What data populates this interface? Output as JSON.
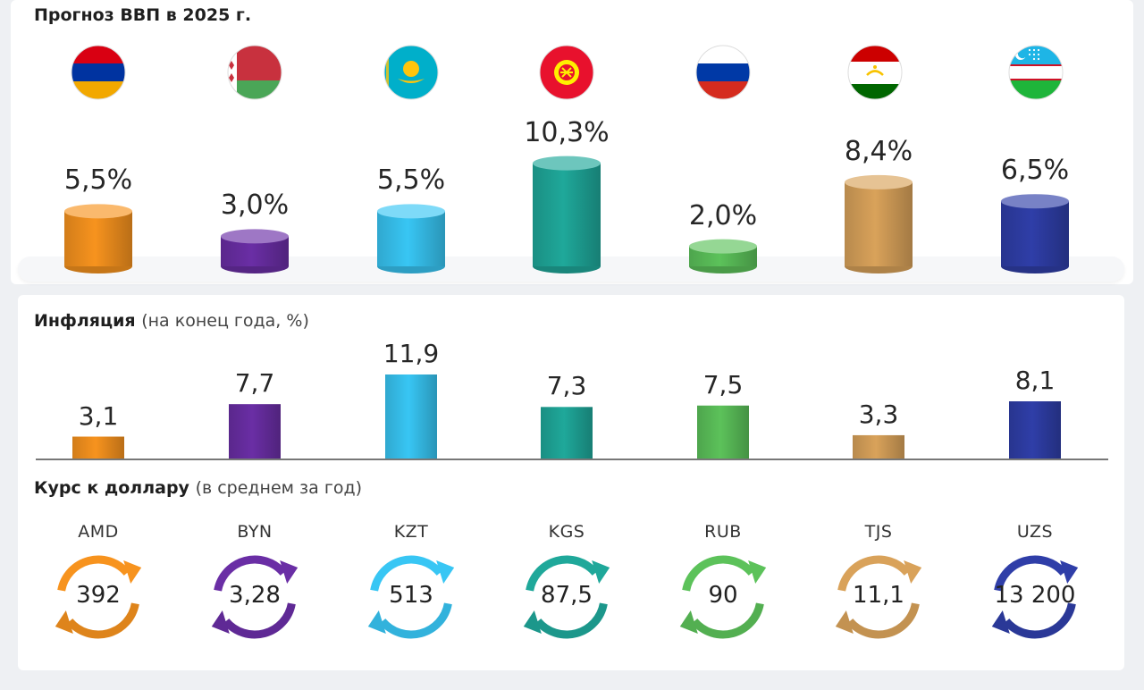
{
  "title": "Прогноз ВВП в 2025 г.",
  "inflation_title": "Инфляция",
  "inflation_subtitle": "(на конец года, %)",
  "rate_title": "Курс к доллару",
  "rate_subtitle": "(в среднем за год)",
  "countries": [
    {
      "flag": "armenia-flag-icon",
      "color": "#f7931e"
    },
    {
      "flag": "belarus-flag-icon",
      "color": "#6a2ea5"
    },
    {
      "flag": "kazakhstan-flag-icon",
      "color": "#38c6f4"
    },
    {
      "flag": "kyrgyzstan-flag-icon",
      "color": "#1fa89a"
    },
    {
      "flag": "russia-flag-icon",
      "color": "#5cc25a"
    },
    {
      "flag": "tajikistan-flag-icon",
      "color": "#d9a25a"
    },
    {
      "flag": "uzbekistan-flag-icon",
      "color": "#2f3ea8"
    }
  ],
  "chart_data": [
    {
      "type": "bar",
      "title": "Прогноз ВВП в 2025 г.",
      "values": [
        5.5,
        3.0,
        5.5,
        10.3,
        2.0,
        8.4,
        6.5
      ],
      "labels": [
        "5,5%",
        "3,0%",
        "5,5%",
        "10,3%",
        "2,0%",
        "8,4%",
        "6,5%"
      ]
    },
    {
      "type": "bar",
      "title": "Инфляция",
      "subtitle": "(на конец года, %)",
      "values": [
        3.1,
        7.7,
        11.9,
        7.3,
        7.5,
        3.3,
        8.1
      ],
      "labels": [
        "3,1",
        "7,7",
        "11,9",
        "7,3",
        "7,5",
        "3,3",
        "8,1"
      ]
    },
    {
      "type": "table",
      "title": "Курс к доллару",
      "subtitle": "(в среднем за год)",
      "categories": [
        "AMD",
        "BYN",
        "KZT",
        "KGS",
        "RUB",
        "TJS",
        "UZS"
      ],
      "values": [
        392,
        3.28,
        513,
        87.5,
        90,
        11.1,
        13200
      ],
      "labels": [
        "392",
        "3,28",
        "513",
        "87,5",
        "90",
        "11,1",
        "13 200"
      ]
    }
  ]
}
